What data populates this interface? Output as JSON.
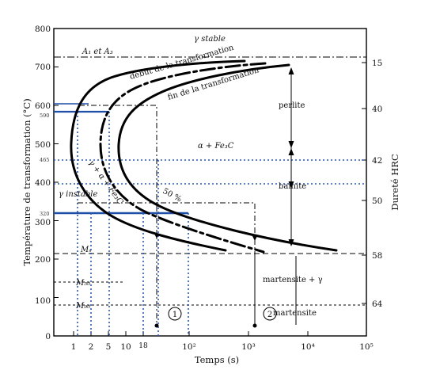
{
  "axes": {
    "x_title": "Temps (s)",
    "y_title": "Température de transformation (°C)",
    "y2_title": "Dureté HRC",
    "x_ticks": [
      "1",
      "2",
      "5",
      "10",
      "18",
      "10²",
      "10³",
      "10⁴",
      "10⁵"
    ],
    "y_ticks": [
      "0",
      "100",
      "200",
      "300",
      "400",
      "500",
      "600",
      "700",
      "800"
    ],
    "y_marked": [
      "590",
      "465",
      "320"
    ],
    "hrc_ticks": [
      "15",
      "40",
      "42",
      "50",
      "58",
      "64"
    ]
  },
  "regions": {
    "gamma_stable": "γ stable",
    "a1_a3": "A₁ et A₃",
    "perlite": "perlite",
    "alpha_fe3c": "α + Fe₃C",
    "bainite": "bainite",
    "gamma_instable": "γ instable",
    "gamma_alpha_fe3c": "γ + α + Fe₃C",
    "martensite_gamma": "martensite + γ",
    "martensite": "martensite"
  },
  "curves": {
    "start": "début de la transformation",
    "end": "fin de la transformation",
    "fifty": "50 %"
  },
  "temperatures": {
    "ms": "Mₛ",
    "m50": "M₅₀",
    "m90": "M₉₀"
  },
  "paths": {
    "path1": "1",
    "path2": "2"
  },
  "chart_data": {
    "type": "line",
    "x_scale": "log",
    "xlim": [
      0.5,
      100000
    ],
    "ylim": [
      0,
      800
    ],
    "horizontal_lines": [
      {
        "name": "A₁ et A₃",
        "y": 723
      },
      {
        "name": "Mₛ",
        "y": 220
      },
      {
        "name": "M₅₀",
        "y": 150
      },
      {
        "name": "M₉₀",
        "y": 100
      }
    ],
    "highlighted_temperatures": [
      590,
      465,
      400,
      320
    ],
    "series": [
      {
        "name": "début de la transformation",
        "points": [
          [
            3000,
            710
          ],
          [
            200,
            680
          ],
          [
            40,
            650
          ],
          [
            10,
            610
          ],
          [
            4,
            570
          ],
          [
            2.5,
            540
          ],
          [
            1.8,
            500
          ],
          [
            1.8,
            440
          ],
          [
            2.5,
            380
          ],
          [
            5,
            330
          ],
          [
            12,
            300
          ],
          [
            50,
            270
          ],
          [
            300,
            230
          ]
        ]
      },
      {
        "name": "50 %",
        "points": [
          [
            3000,
            690
          ],
          [
            300,
            660
          ],
          [
            70,
            630
          ],
          [
            20,
            590
          ],
          [
            8,
            555
          ],
          [
            6,
            520
          ],
          [
            5.5,
            485
          ],
          [
            6,
            450
          ],
          [
            10,
            395
          ],
          [
            25,
            345
          ],
          [
            100,
            300
          ],
          [
            400,
            265
          ],
          [
            1500,
            235
          ]
        ]
      },
      {
        "name": "fin de la transformation",
        "points": [
          [
            5000,
            670
          ],
          [
            600,
            640
          ],
          [
            120,
            600
          ],
          [
            35,
            560
          ],
          [
            15,
            520
          ],
          [
            11,
            480
          ],
          [
            12,
            440
          ],
          [
            18,
            400
          ],
          [
            50,
            350
          ],
          [
            250,
            300
          ],
          [
            1500,
            260
          ],
          [
            6000,
            232
          ],
          [
            25000,
            208
          ]
        ]
      }
    ],
    "hrc_scale": [
      {
        "temperature": 723,
        "hrc": 15
      },
      {
        "temperature": 590,
        "hrc": 40
      },
      {
        "temperature": 465,
        "hrc": 42
      },
      {
        "temperature": 320,
        "hrc": 50
      },
      {
        "temperature": 220,
        "hrc": 58
      },
      {
        "temperature": 100,
        "hrc": 64
      }
    ]
  }
}
